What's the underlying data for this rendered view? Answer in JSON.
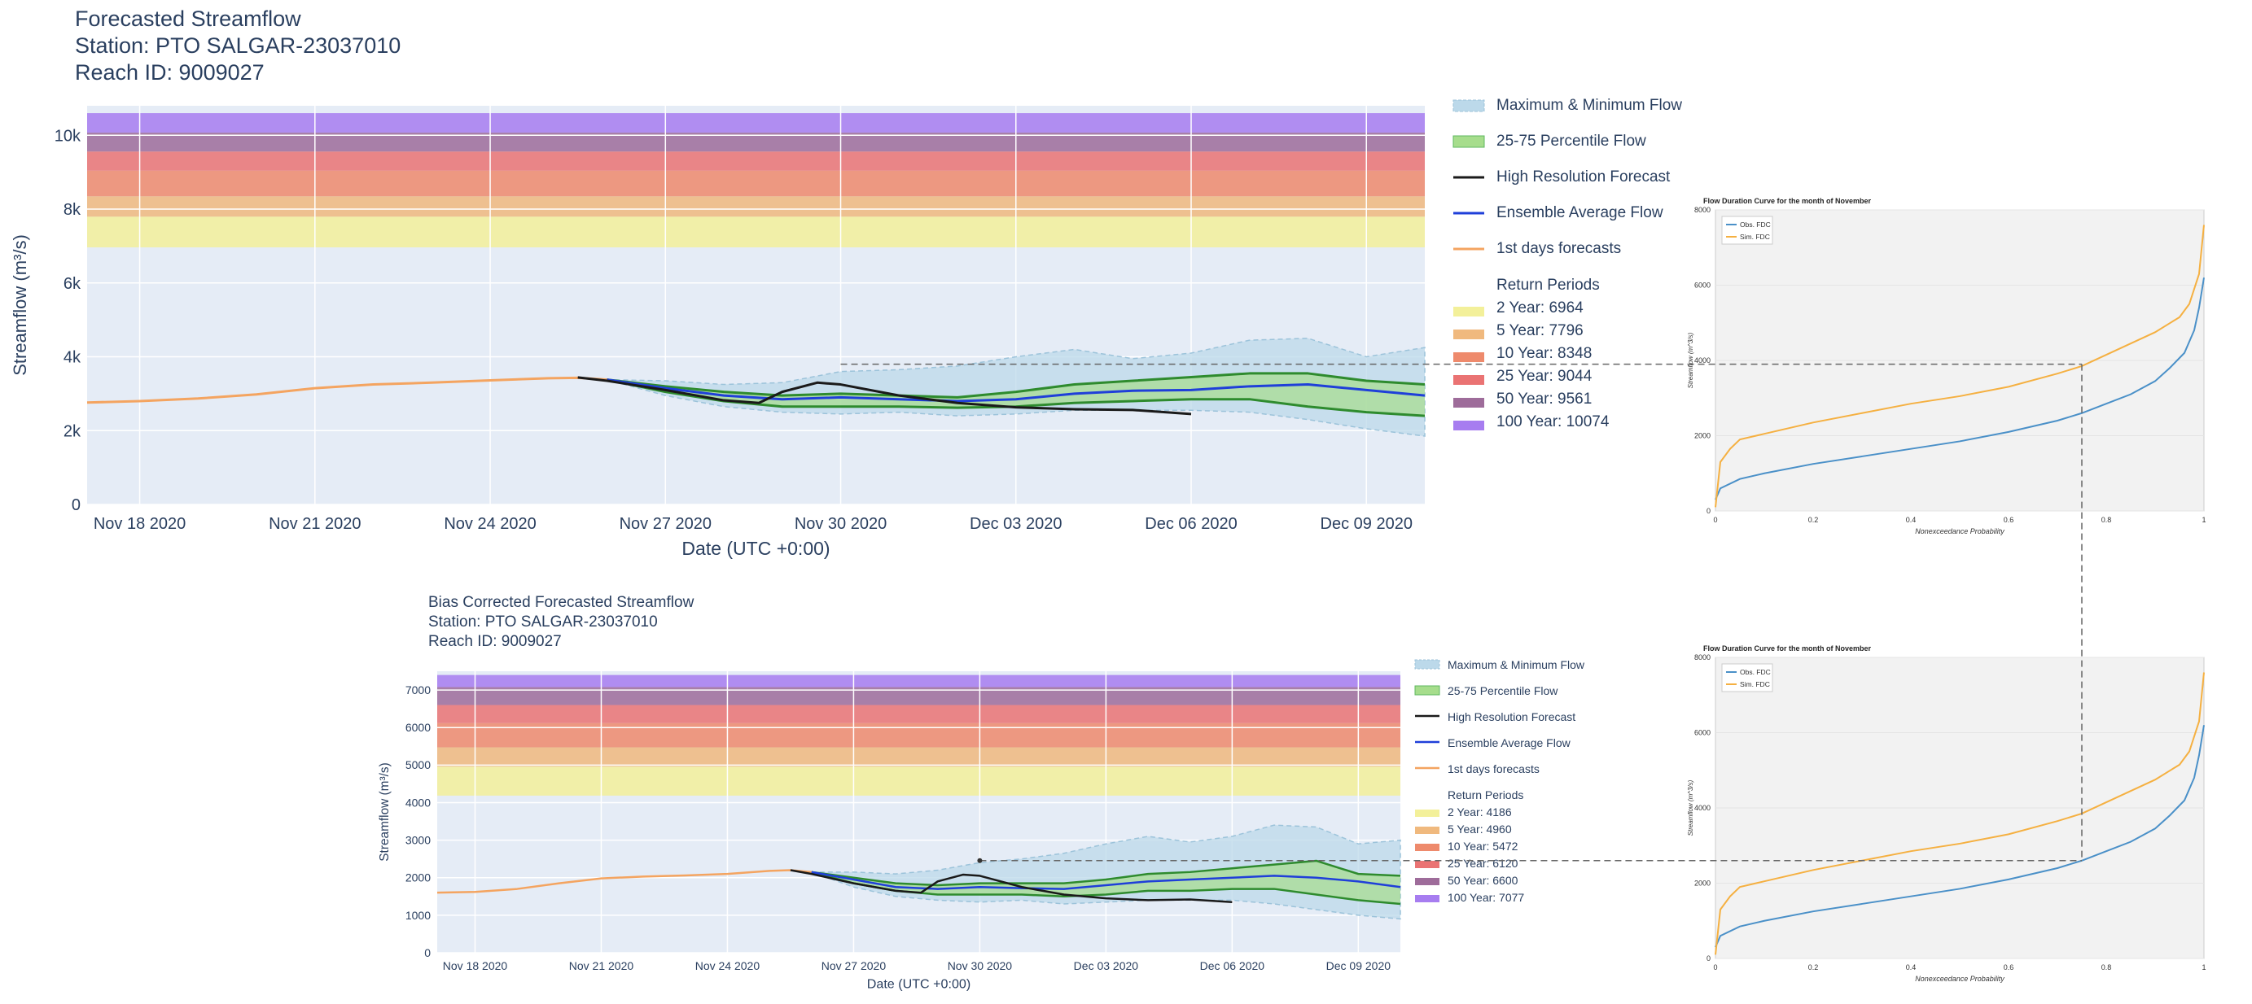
{
  "top": {
    "title_line1": "Forecasted Streamflow",
    "title_line2": "Station: PTO SALGAR-23037010",
    "title_line3": "Reach ID: 9009027",
    "xlabel": "Date (UTC +0:00)",
    "ylabel": "Streamflow (m³/s)",
    "yticks": [
      "0",
      "2k",
      "4k",
      "6k",
      "8k",
      "10k"
    ],
    "xticks": [
      "Nov 18 2020",
      "Nov 21 2020",
      "Nov 24 2020",
      "Nov 27 2020",
      "Nov 30 2020",
      "Dec 03 2020",
      "Dec 06 2020",
      "Dec 09 2020"
    ],
    "legend": {
      "maxmin": "Maximum & Minimum Flow",
      "p2575": "25-75 Percentile Flow",
      "hires": "High Resolution Forecast",
      "ens": "Ensemble Average Flow",
      "firstday": "1st days forecasts",
      "rp_title": "Return Periods",
      "rp": [
        "2 Year: 6964",
        "5 Year: 7796",
        "10 Year: 8348",
        "25 Year: 9044",
        "50 Year: 9561",
        "100 Year: 10074"
      ]
    }
  },
  "bottom": {
    "title_line1": "Bias Corrected Forecasted Streamflow",
    "title_line2": "Station: PTO SALGAR-23037010",
    "title_line3": "Reach ID: 9009027",
    "xlabel": "Date (UTC +0:00)",
    "ylabel": "Streamflow (m³/s)",
    "yticks": [
      "0",
      "1000",
      "2000",
      "3000",
      "4000",
      "5000",
      "6000",
      "7000"
    ],
    "xticks": [
      "Nov 18 2020",
      "Nov 21 2020",
      "Nov 24 2020",
      "Nov 27 2020",
      "Nov 30 2020",
      "Dec 03 2020",
      "Dec 06 2020",
      "Dec 09 2020"
    ],
    "legend": {
      "maxmin": "Maximum & Minimum Flow",
      "p2575": "25-75 Percentile Flow",
      "hires": "High Resolution Forecast",
      "ens": "Ensemble Average Flow",
      "firstday": "1st days forecasts",
      "rp_title": "Return Periods",
      "rp": [
        "2 Year: 4186",
        "5 Year: 4960",
        "10 Year: 5472",
        "25 Year: 6120",
        "50 Year: 6600",
        "100 Year: 7077"
      ]
    }
  },
  "fdc": {
    "title": "Flow Duration Curve for the month of November",
    "xlabel": "Nonexceedance Probability",
    "ylabel": "Streamflow (m^3/s)",
    "legend_obs": "Obs. FDC",
    "legend_sim": "Sim. FDC",
    "yticks": [
      "0",
      "2000",
      "4000",
      "6000",
      "8000"
    ],
    "xticks": [
      "0",
      "0.2",
      "0.4",
      "0.6",
      "0.8",
      "1"
    ]
  },
  "colors": {
    "plot_bg": "#e5ecf6",
    "rp2": "#f3f09a",
    "rp5": "#f0b97e",
    "rp10": "#ee8a6c",
    "rp25": "#ea7373",
    "rp50": "#9e6c9a",
    "rp100": "#a77df0",
    "maxmin": "#bcd9ea",
    "p2575": "#a6dd8c",
    "p2575_line": "#2e8b2e",
    "hires": "#1a1a1a",
    "ens": "#1f3fd9",
    "firstday": "#f4a460",
    "obs": "#4a90c8",
    "sim": "#f5b041"
  },
  "chart_data": [
    {
      "type": "line",
      "title": "Forecasted Streamflow",
      "xlabel": "Date (UTC +0:00)",
      "ylabel": "Streamflow (m³/s)",
      "x_range_days": [
        -0.9,
        22.0
      ],
      "ylim": [
        0,
        10800
      ],
      "x_note": "days since Nov 18 2020",
      "return_periods": [
        {
          "name": "2 Year",
          "value": 6964
        },
        {
          "name": "5 Year",
          "value": 7796
        },
        {
          "name": "10 Year",
          "value": 8348
        },
        {
          "name": "25 Year",
          "value": 9044
        },
        {
          "name": "50 Year",
          "value": 9561
        },
        {
          "name": "100 Year",
          "value": 10074
        }
      ],
      "return_period_top": 10600,
      "series": [
        {
          "name": "1st days forecasts",
          "x": [
            -0.9,
            0,
            1,
            2,
            3,
            4,
            5,
            6,
            7,
            7.5,
            8
          ],
          "values": [
            2760,
            2800,
            2870,
            2980,
            3150,
            3250,
            3300,
            3360,
            3420,
            3430,
            3380
          ]
        },
        {
          "name": "Ensemble Average Flow",
          "x": [
            8,
            9,
            10,
            11,
            12,
            13,
            14,
            15,
            16,
            17,
            18,
            19,
            20,
            21,
            22
          ],
          "values": [
            3380,
            3150,
            2950,
            2850,
            2900,
            2850,
            2800,
            2850,
            3000,
            3080,
            3100,
            3200,
            3250,
            3100,
            2950
          ]
        },
        {
          "name": "High Resolution Forecast",
          "x": [
            7.5,
            8,
            9,
            10,
            10.6,
            11,
            11.6,
            12,
            13,
            14,
            15,
            16,
            17,
            18
          ],
          "values": [
            3440,
            3350,
            3100,
            2820,
            2750,
            3050,
            3300,
            3250,
            2950,
            2750,
            2630,
            2580,
            2560,
            2450
          ]
        },
        {
          "name": "25 Percentile",
          "x": [
            8,
            9,
            10,
            11,
            12,
            13,
            14,
            15,
            16,
            17,
            18,
            19,
            20,
            21,
            22
          ],
          "values": [
            3380,
            3050,
            2800,
            2650,
            2650,
            2650,
            2620,
            2650,
            2750,
            2800,
            2850,
            2850,
            2650,
            2500,
            2400
          ]
        },
        {
          "name": "75 Percentile",
          "x": [
            8,
            9,
            10,
            11,
            12,
            13,
            14,
            15,
            16,
            17,
            18,
            19,
            20,
            21,
            22
          ],
          "values": [
            3380,
            3200,
            3050,
            2950,
            3000,
            2950,
            2900,
            3050,
            3250,
            3350,
            3450,
            3550,
            3550,
            3350,
            3250
          ]
        },
        {
          "name": "Minimum Flow",
          "x": [
            8,
            9,
            10,
            11,
            12,
            13,
            14,
            15,
            16,
            17,
            18,
            19,
            20,
            21,
            22
          ],
          "values": [
            3380,
            2950,
            2650,
            2500,
            2450,
            2500,
            2400,
            2450,
            2550,
            2550,
            2550,
            2500,
            2300,
            2050,
            1850
          ]
        },
        {
          "name": "Maximum Flow",
          "x": [
            8,
            9,
            10,
            11,
            12,
            13,
            14,
            15,
            16,
            17,
            18,
            19,
            20,
            21,
            22
          ],
          "values": [
            3380,
            3350,
            3250,
            3300,
            3600,
            3650,
            3750,
            4000,
            4200,
            3950,
            4100,
            4450,
            4500,
            4000,
            4250
          ]
        }
      ]
    },
    {
      "type": "line",
      "title": "Bias Corrected Forecasted Streamflow",
      "xlabel": "Date (UTC +0:00)",
      "ylabel": "Streamflow (m³/s)",
      "x_range_days": [
        -0.9,
        22.0
      ],
      "ylim": [
        0,
        7500
      ],
      "x_note": "days since Nov 18 2020",
      "return_periods": [
        {
          "name": "2 Year",
          "value": 4186
        },
        {
          "name": "5 Year",
          "value": 4960
        },
        {
          "name": "10 Year",
          "value": 5472
        },
        {
          "name": "25 Year",
          "value": 6120
        },
        {
          "name": "50 Year",
          "value": 6600
        },
        {
          "name": "100 Year",
          "value": 7077
        }
      ],
      "return_period_top": 7400,
      "series": [
        {
          "name": "1st days forecasts",
          "x": [
            -0.9,
            0,
            1,
            2,
            3,
            4,
            5,
            6,
            7,
            7.5,
            8
          ],
          "values": [
            1600,
            1620,
            1700,
            1850,
            1980,
            2030,
            2060,
            2100,
            2180,
            2200,
            2150
          ]
        },
        {
          "name": "Ensemble Average Flow",
          "x": [
            8,
            9,
            10,
            11,
            12,
            13,
            14,
            15,
            16,
            17,
            18,
            19,
            20,
            21,
            22
          ],
          "values": [
            2150,
            1950,
            1750,
            1700,
            1750,
            1720,
            1700,
            1800,
            1900,
            1950,
            2000,
            2050,
            2000,
            1900,
            1750
          ]
        },
        {
          "name": "High Resolution Forecast",
          "x": [
            7.5,
            8,
            9,
            10,
            10.6,
            11,
            11.6,
            12,
            13,
            14,
            15,
            16,
            17,
            18
          ],
          "values": [
            2200,
            2100,
            1850,
            1650,
            1600,
            1900,
            2080,
            2050,
            1750,
            1550,
            1450,
            1400,
            1420,
            1350
          ]
        },
        {
          "name": "25 Percentile",
          "x": [
            8,
            9,
            10,
            11,
            12,
            13,
            14,
            15,
            16,
            17,
            18,
            19,
            20,
            21,
            22
          ],
          "values": [
            2150,
            1850,
            1650,
            1550,
            1550,
            1550,
            1500,
            1550,
            1650,
            1650,
            1700,
            1700,
            1550,
            1400,
            1300
          ]
        },
        {
          "name": "75 Percentile",
          "x": [
            8,
            9,
            10,
            11,
            12,
            13,
            14,
            15,
            16,
            17,
            18,
            19,
            20,
            21,
            22
          ],
          "values": [
            2150,
            2000,
            1850,
            1800,
            1850,
            1850,
            1850,
            1950,
            2100,
            2150,
            2250,
            2350,
            2450,
            2100,
            2050
          ]
        },
        {
          "name": "Minimum Flow",
          "x": [
            8,
            9,
            10,
            11,
            12,
            13,
            14,
            15,
            16,
            17,
            18,
            19,
            20,
            21,
            22
          ],
          "values": [
            2150,
            1750,
            1500,
            1400,
            1350,
            1400,
            1300,
            1350,
            1400,
            1400,
            1400,
            1300,
            1150,
            1000,
            900
          ]
        },
        {
          "name": "Maximum Flow",
          "x": [
            8,
            9,
            10,
            11,
            12,
            13,
            14,
            15,
            16,
            17,
            18,
            19,
            20,
            21,
            22
          ],
          "values": [
            2150,
            2150,
            2100,
            2200,
            2400,
            2500,
            2650,
            2900,
            3100,
            2950,
            3100,
            3400,
            3350,
            2900,
            3000
          ]
        }
      ]
    },
    {
      "type": "line",
      "title": "Flow Duration Curve for the month of November",
      "xlabel": "Nonexceedance Probability",
      "ylabel": "Streamflow (m^3/s)",
      "xlim": [
        0,
        1
      ],
      "ylim": [
        0,
        8000
      ],
      "series": [
        {
          "name": "Obs. FDC",
          "x": [
            0,
            0.01,
            0.05,
            0.1,
            0.2,
            0.3,
            0.4,
            0.5,
            0.6,
            0.7,
            0.75,
            0.8,
            0.85,
            0.9,
            0.93,
            0.96,
            0.98,
            0.99,
            1.0
          ],
          "values": [
            300,
            600,
            850,
            1000,
            1250,
            1450,
            1650,
            1850,
            2100,
            2400,
            2600,
            2850,
            3100,
            3450,
            3800,
            4200,
            4800,
            5400,
            6200
          ]
        },
        {
          "name": "Sim. FDC",
          "x": [
            0,
            0.01,
            0.03,
            0.05,
            0.1,
            0.2,
            0.3,
            0.4,
            0.5,
            0.6,
            0.7,
            0.75,
            0.8,
            0.85,
            0.9,
            0.95,
            0.97,
            0.99,
            1.0
          ],
          "values": [
            100,
            1300,
            1650,
            1900,
            2050,
            2350,
            2600,
            2850,
            3050,
            3300,
            3650,
            3850,
            4150,
            4450,
            4750,
            5150,
            5500,
            6300,
            7600
          ]
        }
      ]
    }
  ]
}
